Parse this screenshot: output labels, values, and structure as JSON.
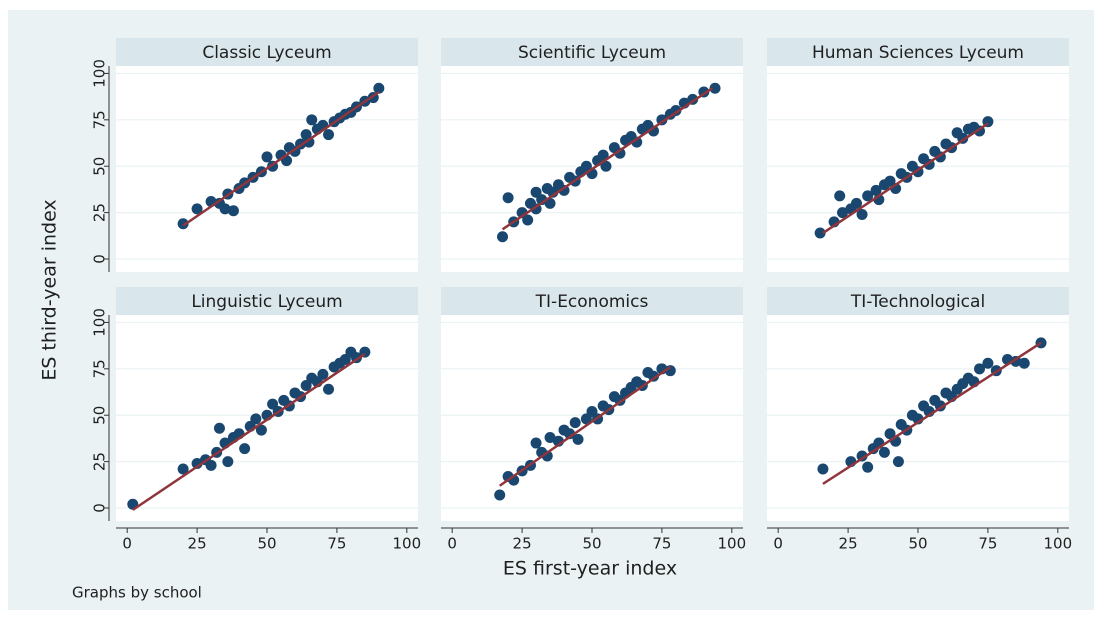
{
  "chart_data": {
    "type": "scatter",
    "xlabel": "ES first-year index",
    "ylabel": "ES third-year index",
    "note": "Graphs by school",
    "xlim": [
      -4,
      104
    ],
    "ylim": [
      -7,
      104
    ],
    "xticks": [
      0,
      25,
      50,
      75,
      100
    ],
    "yticks": [
      0,
      25,
      50,
      75,
      100
    ],
    "grid": true,
    "marker_color": "#1a476f",
    "fit_color": "#90353b",
    "panels": [
      {
        "title": "Classic Lyceum",
        "x": [
          20,
          25,
          30,
          33,
          35,
          36,
          38,
          40,
          42,
          45,
          48,
          50,
          52,
          55,
          57,
          58,
          60,
          62,
          64,
          65,
          66,
          68,
          70,
          72,
          74,
          76,
          78,
          80,
          82,
          85,
          88,
          90
        ],
        "y": [
          19,
          27,
          31,
          30,
          27,
          35,
          26,
          38,
          41,
          44,
          47,
          55,
          50,
          56,
          53,
          60,
          58,
          62,
          67,
          63,
          75,
          70,
          72,
          67,
          74,
          76,
          78,
          79,
          82,
          85,
          87,
          92
        ],
        "fit": {
          "x": [
            20,
            90
          ],
          "y": [
            18,
            90
          ]
        }
      },
      {
        "title": "Scientific Lyceum",
        "x": [
          18,
          20,
          22,
          25,
          27,
          28,
          30,
          30,
          32,
          34,
          35,
          36,
          38,
          40,
          42,
          44,
          46,
          48,
          50,
          52,
          54,
          55,
          58,
          60,
          62,
          64,
          66,
          68,
          70,
          72,
          75,
          78,
          80,
          83,
          86,
          90,
          94
        ],
        "y": [
          12,
          33,
          20,
          25,
          21,
          30,
          27,
          36,
          32,
          38,
          30,
          36,
          40,
          37,
          44,
          42,
          47,
          50,
          46,
          53,
          56,
          50,
          60,
          57,
          64,
          66,
          63,
          70,
          72,
          69,
          75,
          78,
          80,
          84,
          86,
          90,
          92
        ],
        "fit": {
          "x": [
            18,
            93
          ],
          "y": [
            16,
            92
          ]
        }
      },
      {
        "title": "Human Sciences Lyceum",
        "x": [
          15,
          20,
          22,
          23,
          26,
          28,
          30,
          32,
          35,
          36,
          38,
          40,
          42,
          44,
          46,
          48,
          50,
          52,
          54,
          56,
          58,
          60,
          62,
          64,
          66,
          68,
          70,
          72,
          75
        ],
        "y": [
          14,
          20,
          34,
          25,
          27,
          30,
          24,
          34,
          37,
          32,
          40,
          42,
          38,
          46,
          44,
          50,
          47,
          54,
          51,
          58,
          55,
          62,
          60,
          68,
          65,
          70,
          71,
          69,
          74
        ],
        "fit": {
          "x": [
            16,
            75
          ],
          "y": [
            14,
            73
          ]
        }
      },
      {
        "title": "Linguistic Lyceum",
        "x": [
          2,
          20,
          25,
          28,
          30,
          32,
          33,
          35,
          36,
          38,
          40,
          42,
          44,
          46,
          48,
          50,
          52,
          54,
          56,
          58,
          60,
          62,
          64,
          66,
          68,
          70,
          72,
          74,
          76,
          78,
          80,
          82,
          85
        ],
        "y": [
          2,
          21,
          24,
          26,
          23,
          30,
          43,
          35,
          25,
          38,
          40,
          32,
          44,
          48,
          42,
          50,
          56,
          52,
          58,
          55,
          62,
          60,
          66,
          70,
          68,
          72,
          64,
          76,
          78,
          80,
          84,
          81,
          84
        ],
        "fit": {
          "x": [
            2,
            85
          ],
          "y": [
            -1,
            83
          ]
        }
      },
      {
        "title": "TI-Economics",
        "x": [
          17,
          20,
          22,
          25,
          28,
          30,
          32,
          34,
          35,
          38,
          40,
          42,
          44,
          45,
          48,
          50,
          52,
          54,
          56,
          58,
          60,
          62,
          64,
          66,
          68,
          70,
          72,
          75,
          78
        ],
        "y": [
          7,
          17,
          15,
          20,
          23,
          35,
          30,
          28,
          38,
          36,
          42,
          40,
          46,
          37,
          48,
          52,
          48,
          55,
          53,
          60,
          58,
          62,
          65,
          68,
          66,
          73,
          71,
          75,
          74
        ],
        "fit": {
          "x": [
            17,
            78
          ],
          "y": [
            12,
            76
          ]
        }
      },
      {
        "title": "TI-Technological",
        "x": [
          16,
          26,
          30,
          32,
          34,
          36,
          38,
          40,
          42,
          43,
          44,
          46,
          48,
          50,
          52,
          54,
          56,
          58,
          60,
          62,
          64,
          66,
          68,
          70,
          72,
          75,
          78,
          82,
          85,
          88,
          94
        ],
        "y": [
          21,
          25,
          28,
          22,
          32,
          35,
          30,
          40,
          36,
          25,
          45,
          42,
          50,
          48,
          55,
          52,
          58,
          55,
          62,
          60,
          64,
          67,
          70,
          68,
          75,
          78,
          74,
          80,
          79,
          78,
          89
        ],
        "fit": {
          "x": [
            16,
            94
          ],
          "y": [
            13,
            89
          ]
        }
      }
    ]
  }
}
